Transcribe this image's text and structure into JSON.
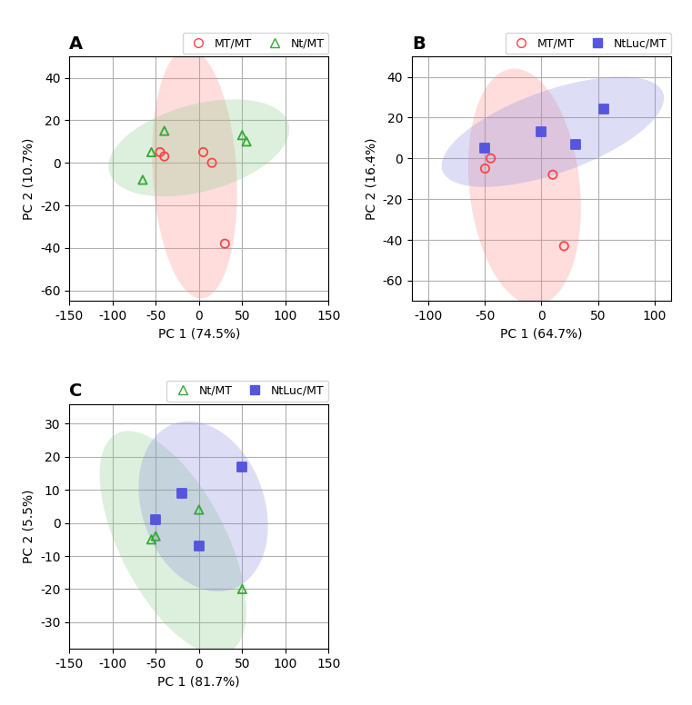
{
  "chart_data": [
    {
      "type": "scatter",
      "title": "A",
      "xlabel": "PC 1 (74.5%)",
      "ylabel": "PC 2 (10.7%)",
      "xlim": [
        -150,
        150
      ],
      "ylim": [
        -65,
        50
      ],
      "xticks": [
        -150,
        -100,
        -50,
        0,
        50,
        100,
        150
      ],
      "yticks": [
        -60,
        -40,
        -20,
        0,
        20,
        40
      ],
      "grid": true,
      "legend": "upper right",
      "series": [
        {
          "name": "MT/MT",
          "color": "#FF4444",
          "marker": "open circle",
          "x": [
            -45,
            -40,
            5,
            15,
            30
          ],
          "values": [
            5,
            3,
            5,
            0,
            -38
          ],
          "ellipse": {
            "cx": -5,
            "cy": -5,
            "width": 120,
            "height": 95,
            "angle": -70,
            "color": "#FF8888"
          }
        },
        {
          "name": "Nt/MT",
          "color": "#33AA33",
          "marker": "open triangle",
          "x": [
            -55,
            -65,
            -40,
            50,
            55
          ],
          "values": [
            5,
            -8,
            15,
            13,
            10
          ],
          "ellipse": {
            "cx": 0,
            "cy": 7,
            "width": 210,
            "height": 42,
            "angle": 5,
            "color": "#88CC88"
          }
        }
      ]
    },
    {
      "type": "scatter",
      "title": "B",
      "xlabel": "PC 1 (64.7%)",
      "ylabel": "PC 2 (16.4%)",
      "xlim": [
        -115,
        115
      ],
      "ylim": [
        -70,
        50
      ],
      "xticks": [
        -100,
        -50,
        0,
        50,
        100
      ],
      "yticks": [
        -60,
        -40,
        -20,
        0,
        20,
        40
      ],
      "grid": true,
      "legend": "upper right",
      "series": [
        {
          "name": "MT/MT",
          "color": "#FF4444",
          "marker": "open circle",
          "x": [
            -50,
            -45,
            10,
            20
          ],
          "values": [
            -5,
            0,
            -8,
            -43
          ],
          "ellipse": {
            "cx": -15,
            "cy": -14,
            "width": 120,
            "height": 95,
            "angle": -65,
            "color": "#FF8888"
          }
        },
        {
          "name": "NtLuc/MT",
          "color": "#5555DD",
          "marker": "filled square",
          "x": [
            -50,
            0,
            30,
            55
          ],
          "values": [
            5,
            13,
            7,
            24
          ],
          "ellipse": {
            "cx": 10,
            "cy": 13,
            "width": 200,
            "height": 42,
            "angle": 10,
            "color": "#8888DD"
          }
        }
      ]
    },
    {
      "type": "scatter",
      "title": "C",
      "xlabel": "PC 1 (81.7%)",
      "ylabel": "PC 2 (5.5%)",
      "xlim": [
        -150,
        150
      ],
      "ylim": [
        -38,
        36
      ],
      "xticks": [
        -150,
        -100,
        -50,
        0,
        50,
        100,
        150
      ],
      "yticks": [
        -30,
        -20,
        -10,
        0,
        10,
        20,
        30
      ],
      "grid": true,
      "legend": "upper right",
      "series": [
        {
          "name": "Nt/MT",
          "color": "#33AA33",
          "marker": "open triangle",
          "x": [
            -55,
            -50,
            0,
            50
          ],
          "values": [
            -5,
            -4,
            4,
            -20
          ],
          "ellipse": {
            "cx": -30,
            "cy": -6,
            "width": 175,
            "height": 52,
            "angle": -15,
            "color": "#88CC88"
          }
        },
        {
          "name": "NtLuc/MT",
          "color": "#5555DD",
          "marker": "filled square",
          "x": [
            -50,
            -20,
            0,
            50
          ],
          "values": [
            1,
            9,
            -7,
            17
          ],
          "ellipse": {
            "cx": 5,
            "cy": 5,
            "width": 150,
            "height": 50,
            "angle": -5,
            "color": "#8888DD"
          }
        }
      ]
    }
  ]
}
